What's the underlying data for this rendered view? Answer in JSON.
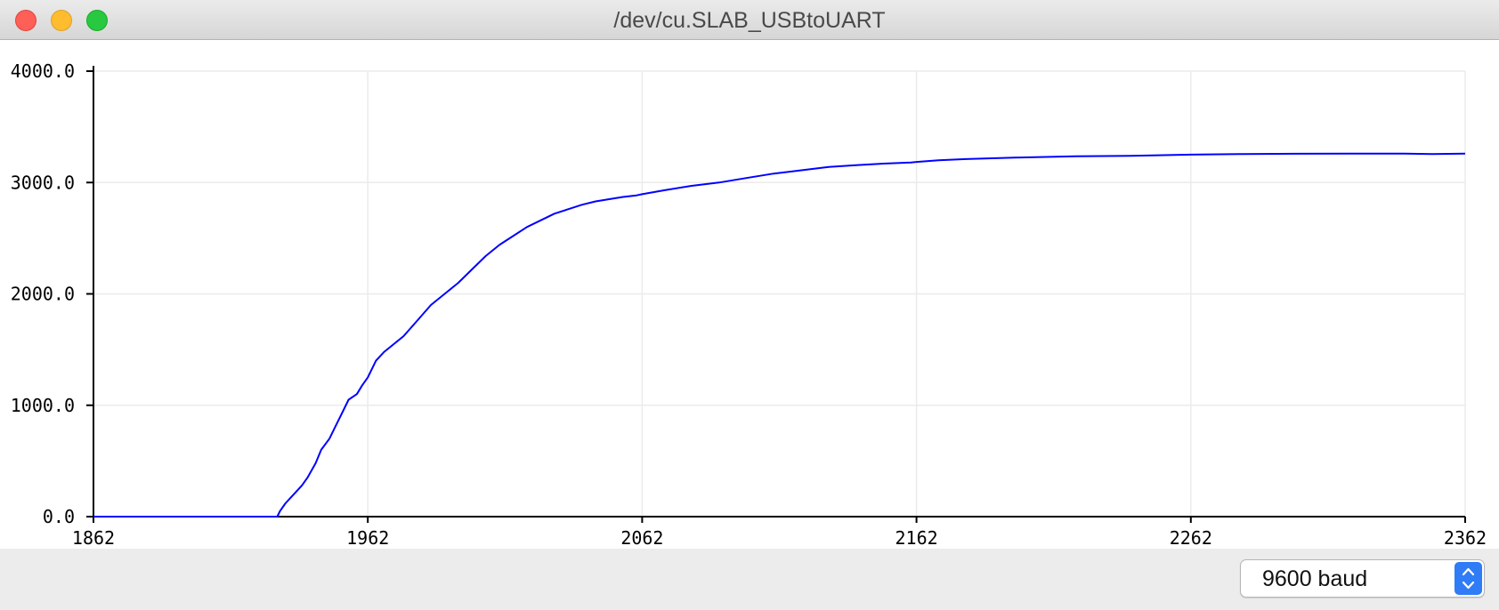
{
  "window": {
    "title": "/dev/cu.SLAB_USBtoUART"
  },
  "controls": {
    "baud": "9600 baud",
    "baud_icon": "chevron-up-down-icon"
  },
  "colors": {
    "series": "#0000ff",
    "grid": "#ebebeb",
    "axis": "#000000",
    "select_accent": "#2f7cf6"
  },
  "chart_data": {
    "type": "line",
    "title": "",
    "xlabel": "",
    "ylabel": "",
    "xlim": [
      1862,
      2362
    ],
    "ylim": [
      0,
      4000
    ],
    "x_ticks": [
      "1862",
      "1962",
      "2062",
      "2162",
      "2262",
      "2362"
    ],
    "y_ticks": [
      "0.0",
      "1000.0",
      "2000.0",
      "3000.0",
      "4000.0"
    ],
    "grid": true,
    "legend": "none",
    "series": [
      {
        "x": [
          1862,
          1880,
          1900,
          1920,
          1929,
          1930,
          1932,
          1935,
          1938,
          1940,
          1943,
          1945,
          1948,
          1950,
          1953,
          1955,
          1958,
          1960,
          1962,
          1965,
          1968,
          1970,
          1975,
          1980,
          1985,
          1990,
          1995,
          2000,
          2005,
          2010,
          2015,
          2020,
          2025,
          2030,
          2035,
          2040,
          2045,
          2050,
          2055,
          2060,
          2062,
          2070,
          2080,
          2090,
          2100,
          2110,
          2120,
          2130,
          2140,
          2150,
          2160,
          2162,
          2170,
          2180,
          2200,
          2220,
          2240,
          2262,
          2280,
          2300,
          2320,
          2340,
          2350,
          2362
        ],
        "y": [
          0,
          0,
          0,
          0,
          0,
          50,
          120,
          200,
          280,
          350,
          480,
          600,
          700,
          800,
          950,
          1050,
          1100,
          1180,
          1250,
          1400,
          1480,
          1520,
          1620,
          1760,
          1900,
          2000,
          2100,
          2220,
          2340,
          2440,
          2520,
          2600,
          2660,
          2720,
          2760,
          2800,
          2830,
          2850,
          2870,
          2885,
          2895,
          2930,
          2970,
          3000,
          3040,
          3080,
          3110,
          3140,
          3155,
          3170,
          3180,
          3185,
          3200,
          3210,
          3225,
          3235,
          3240,
          3250,
          3255,
          3258,
          3260,
          3260,
          3255,
          3260
        ]
      }
    ]
  }
}
